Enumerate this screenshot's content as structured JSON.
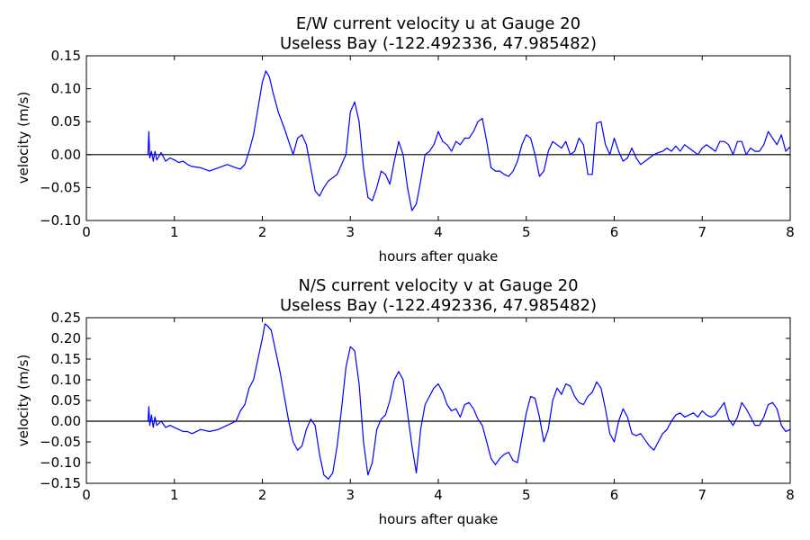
{
  "chart_data": [
    {
      "type": "line",
      "title": "E/W current velocity u at Gauge 20",
      "subtitle": "Useless Bay  (-122.492336, 47.985482)",
      "xlabel": "hours after quake",
      "ylabel": "velocity (m/s)",
      "xlim": [
        0,
        8
      ],
      "ylim": [
        -0.1,
        0.15
      ],
      "xticks": [
        "0",
        "1",
        "2",
        "3",
        "4",
        "5",
        "6",
        "7",
        "8"
      ],
      "yticks": [
        "0.15",
        "0.10",
        "0.05",
        "0.00",
        "−0.05",
        "−0.10"
      ],
      "ytick_values": [
        0.15,
        0.1,
        0.05,
        0.0,
        -0.05,
        -0.1
      ],
      "grid": false,
      "zero_line": true,
      "colors": {
        "series": "#0000ff",
        "zero_line": "#000000"
      },
      "series": [
        {
          "x": [
            0.7,
            0.71,
            0.72,
            0.74,
            0.76,
            0.78,
            0.8,
            0.85,
            0.9,
            0.95,
            1.0,
            1.05,
            1.1,
            1.15,
            1.2,
            1.3,
            1.4,
            1.5,
            1.6,
            1.7,
            1.75,
            1.8,
            1.85,
            1.9,
            1.95,
            2.0,
            2.04,
            2.08,
            2.12,
            2.18,
            2.25,
            2.3,
            2.35,
            2.4,
            2.45,
            2.5,
            2.55,
            2.6,
            2.65,
            2.7,
            2.75,
            2.85,
            2.95,
            3.0,
            3.05,
            3.1,
            3.15,
            3.2,
            3.25,
            3.3,
            3.35,
            3.4,
            3.45,
            3.5,
            3.55,
            3.6,
            3.65,
            3.7,
            3.75,
            3.8,
            3.85,
            3.9,
            3.95,
            4.0,
            4.05,
            4.1,
            4.15,
            4.2,
            4.25,
            4.3,
            4.35,
            4.4,
            4.45,
            4.5,
            4.55,
            4.6,
            4.65,
            4.7,
            4.75,
            4.8,
            4.85,
            4.9,
            4.95,
            5.0,
            5.05,
            5.1,
            5.15,
            5.2,
            5.25,
            5.3,
            5.35,
            5.4,
            5.45,
            5.5,
            5.55,
            5.6,
            5.65,
            5.7,
            5.75,
            5.8,
            5.85,
            5.9,
            5.95,
            6.0,
            6.05,
            6.1,
            6.15,
            6.2,
            6.25,
            6.3,
            6.35,
            6.4,
            6.45,
            6.5,
            6.55,
            6.6,
            6.65,
            6.7,
            6.75,
            6.8,
            6.85,
            6.9,
            6.95,
            7.0,
            7.05,
            7.1,
            7.15,
            7.2,
            7.25,
            7.3,
            7.35,
            7.4,
            7.45,
            7.5,
            7.55,
            7.6,
            7.65,
            7.7,
            7.75,
            7.8,
            7.85,
            7.9,
            7.95,
            8.0
          ],
          "y": [
            0.0,
            0.035,
            -0.005,
            0.005,
            -0.01,
            0.005,
            -0.008,
            0.003,
            -0.01,
            -0.005,
            -0.008,
            -0.012,
            -0.01,
            -0.015,
            -0.018,
            -0.02,
            -0.025,
            -0.02,
            -0.015,
            -0.02,
            -0.022,
            -0.015,
            0.005,
            0.03,
            0.07,
            0.11,
            0.127,
            0.118,
            0.095,
            0.065,
            0.04,
            0.02,
            0.0,
            0.025,
            0.03,
            0.015,
            -0.02,
            -0.055,
            -0.063,
            -0.05,
            -0.04,
            -0.03,
            0.0,
            0.065,
            0.08,
            0.05,
            -0.02,
            -0.065,
            -0.07,
            -0.05,
            -0.025,
            -0.03,
            -0.045,
            -0.01,
            0.02,
            0.0,
            -0.05,
            -0.085,
            -0.075,
            -0.04,
            0.0,
            0.005,
            0.015,
            0.035,
            0.02,
            0.015,
            0.005,
            0.02,
            0.015,
            0.025,
            0.025,
            0.035,
            0.05,
            0.055,
            0.02,
            -0.02,
            -0.025,
            -0.025,
            -0.03,
            -0.033,
            -0.025,
            -0.01,
            0.015,
            0.03,
            0.025,
            0.0,
            -0.033,
            -0.025,
            0.005,
            0.02,
            0.015,
            0.01,
            0.02,
            0.0,
            0.005,
            0.025,
            0.015,
            -0.03,
            -0.03,
            0.048,
            0.05,
            0.015,
            0.0,
            0.025,
            0.005,
            -0.01,
            -0.005,
            0.01,
            -0.005,
            -0.015,
            -0.01,
            -0.005,
            0.0,
            0.003,
            0.005,
            0.01,
            0.005,
            0.013,
            0.005,
            0.015,
            0.01,
            0.005,
            0.0,
            0.01,
            0.015,
            0.01,
            0.005,
            0.02,
            0.02,
            0.015,
            0.0,
            0.02,
            0.02,
            0.0,
            0.01,
            0.005,
            0.005,
            0.015,
            0.035,
            0.025,
            0.015,
            0.03,
            0.005,
            0.012
          ]
        }
      ]
    },
    {
      "type": "line",
      "title": "N/S current velocity v at Gauge 20",
      "subtitle": "Useless Bay  (-122.492336, 47.985482)",
      "xlabel": "hours after quake",
      "ylabel": "velocity (m/s)",
      "xlim": [
        0,
        8
      ],
      "ylim": [
        -0.15,
        0.25
      ],
      "xticks": [
        "0",
        "1",
        "2",
        "3",
        "4",
        "5",
        "6",
        "7",
        "8"
      ],
      "yticks": [
        "0.25",
        "0.20",
        "0.15",
        "0.10",
        "0.05",
        "0.00",
        "−0.05",
        "−0.10",
        "−0.15"
      ],
      "ytick_values": [
        0.25,
        0.2,
        0.15,
        0.1,
        0.05,
        0.0,
        -0.05,
        -0.1,
        -0.15
      ],
      "grid": false,
      "zero_line": true,
      "colors": {
        "series": "#0000ff",
        "zero_line": "#000000"
      },
      "series": [
        {
          "x": [
            0.7,
            0.71,
            0.72,
            0.74,
            0.76,
            0.78,
            0.8,
            0.85,
            0.9,
            0.95,
            1.0,
            1.05,
            1.1,
            1.15,
            1.2,
            1.3,
            1.4,
            1.5,
            1.6,
            1.7,
            1.75,
            1.8,
            1.85,
            1.9,
            1.95,
            2.0,
            2.03,
            2.06,
            2.1,
            2.15,
            2.2,
            2.25,
            2.3,
            2.35,
            2.4,
            2.45,
            2.5,
            2.55,
            2.6,
            2.65,
            2.7,
            2.75,
            2.8,
            2.85,
            2.9,
            2.95,
            3.0,
            3.05,
            3.1,
            3.15,
            3.2,
            3.25,
            3.3,
            3.35,
            3.4,
            3.45,
            3.5,
            3.55,
            3.6,
            3.65,
            3.7,
            3.75,
            3.8,
            3.85,
            3.9,
            3.95,
            4.0,
            4.05,
            4.1,
            4.15,
            4.2,
            4.25,
            4.3,
            4.35,
            4.4,
            4.45,
            4.5,
            4.55,
            4.6,
            4.65,
            4.7,
            4.75,
            4.8,
            4.85,
            4.9,
            4.95,
            5.0,
            5.05,
            5.1,
            5.15,
            5.2,
            5.25,
            5.3,
            5.35,
            5.4,
            5.45,
            5.5,
            5.55,
            5.6,
            5.65,
            5.7,
            5.75,
            5.8,
            5.85,
            5.9,
            5.95,
            6.0,
            6.05,
            6.1,
            6.15,
            6.2,
            6.25,
            6.3,
            6.35,
            6.4,
            6.45,
            6.5,
            6.55,
            6.6,
            6.65,
            6.7,
            6.75,
            6.8,
            6.85,
            6.9,
            6.95,
            7.0,
            7.05,
            7.1,
            7.15,
            7.2,
            7.25,
            7.3,
            7.35,
            7.4,
            7.45,
            7.5,
            7.55,
            7.6,
            7.65,
            7.7,
            7.75,
            7.8,
            7.85,
            7.9,
            7.95,
            8.0
          ],
          "y": [
            0.0,
            0.035,
            -0.01,
            0.015,
            -0.015,
            0.01,
            -0.01,
            0.0,
            -0.015,
            -0.01,
            -0.015,
            -0.02,
            -0.025,
            -0.025,
            -0.03,
            -0.02,
            -0.025,
            -0.02,
            -0.01,
            0.0,
            0.025,
            0.04,
            0.08,
            0.1,
            0.15,
            0.2,
            0.235,
            0.23,
            0.22,
            0.17,
            0.12,
            0.06,
            0.0,
            -0.05,
            -0.07,
            -0.06,
            -0.02,
            0.005,
            -0.01,
            -0.08,
            -0.13,
            -0.14,
            -0.125,
            -0.06,
            0.03,
            0.13,
            0.18,
            0.17,
            0.09,
            -0.05,
            -0.13,
            -0.1,
            -0.02,
            0.005,
            0.015,
            0.05,
            0.1,
            0.12,
            0.1,
            0.02,
            -0.06,
            -0.125,
            -0.02,
            0.04,
            0.06,
            0.08,
            0.09,
            0.07,
            0.04,
            0.025,
            0.03,
            0.01,
            0.04,
            0.045,
            0.03,
            0.005,
            -0.01,
            -0.05,
            -0.09,
            -0.105,
            -0.09,
            -0.08,
            -0.075,
            -0.095,
            -0.1,
            -0.04,
            0.02,
            0.06,
            0.055,
            0.01,
            -0.05,
            -0.02,
            0.05,
            0.08,
            0.065,
            0.09,
            0.085,
            0.06,
            0.045,
            0.04,
            0.06,
            0.07,
            0.095,
            0.08,
            0.03,
            -0.03,
            -0.05,
            0.0,
            0.03,
            0.01,
            -0.03,
            -0.035,
            -0.03,
            -0.045,
            -0.06,
            -0.07,
            -0.05,
            -0.03,
            -0.02,
            0.0,
            0.015,
            0.02,
            0.01,
            0.015,
            0.02,
            0.01,
            0.025,
            0.015,
            0.01,
            0.015,
            0.03,
            0.045,
            0.005,
            -0.01,
            0.01,
            0.045,
            0.03,
            0.01,
            -0.01,
            -0.01,
            0.01,
            0.04,
            0.045,
            0.03,
            -0.01,
            -0.025,
            -0.02
          ]
        }
      ]
    }
  ]
}
